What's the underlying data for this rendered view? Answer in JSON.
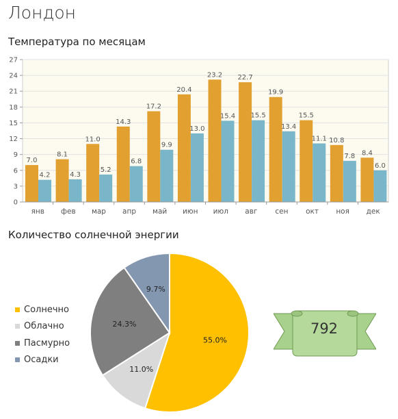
{
  "page": {
    "title": "Лондон",
    "temp_title": "Температура по месяцам",
    "sun_title": "Количество солнечной энергии"
  },
  "badge": {
    "value": "792",
    "color": "#a9d18e"
  },
  "chart_data": [
    {
      "type": "bar",
      "categories": [
        "янв",
        "фев",
        "мар",
        "апр",
        "май",
        "июн",
        "июл",
        "авг",
        "сен",
        "окт",
        "ноя",
        "дек"
      ],
      "series": [
        {
          "values": [
            7.0,
            8.1,
            11.0,
            14.3,
            17.2,
            20.4,
            23.2,
            22.7,
            19.9,
            15.5,
            10.8,
            8.4
          ],
          "color": "#e2a030"
        },
        {
          "values": [
            4.2,
            4.3,
            5.2,
            6.8,
            9.9,
            13.0,
            15.4,
            15.5,
            13.4,
            11.1,
            7.8,
            6.0
          ],
          "color": "#79b6c9"
        }
      ],
      "yticks": [
        "0",
        "3",
        "6",
        "9",
        "12",
        "15",
        "18",
        "21",
        "24",
        "27"
      ],
      "ylim": [
        0,
        27
      ],
      "grid": true,
      "background": "#fdfbef"
    },
    {
      "type": "pie",
      "slices": [
        {
          "label": "Солнечно",
          "value": 55.0,
          "display": "55.0%",
          "color": "#ffc000"
        },
        {
          "label": "Облачно",
          "value": 11.0,
          "display": "11.0%",
          "color": "#d9d9d9"
        },
        {
          "label": "Пасмурно",
          "value": 24.3,
          "display": "24.3%",
          "color": "#7f7f7f"
        },
        {
          "label": "Осадки",
          "value": 9.7,
          "display": "9.7%",
          "color": "#8497b0"
        }
      ],
      "legend_position": "left"
    }
  ]
}
